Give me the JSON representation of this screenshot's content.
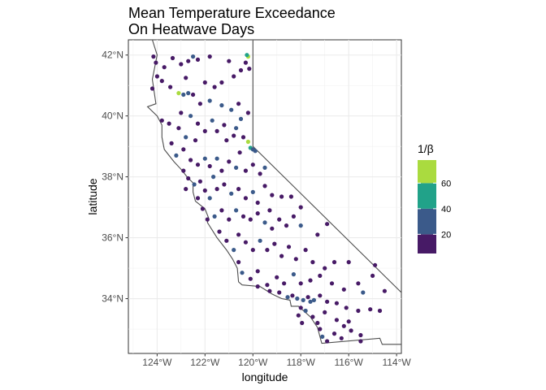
{
  "chart_data": {
    "type": "scatter",
    "title": [
      "Mean Temperature Exceedance",
      "On Heatwave Days"
    ],
    "xlabel": "longitude",
    "ylabel": "latitude",
    "xlim": [
      -125.2,
      -113.8
    ],
    "ylim": [
      32.2,
      42.5
    ],
    "x_ticks": [
      {
        "value": -124,
        "label": "124°W"
      },
      {
        "value": -122,
        "label": "122°W"
      },
      {
        "value": -120,
        "label": "120°W"
      },
      {
        "value": -118,
        "label": "118°W"
      },
      {
        "value": -116,
        "label": "116°W"
      },
      {
        "value": -114,
        "label": "114°W"
      }
    ],
    "y_ticks": [
      {
        "value": 34,
        "label": "34°N"
      },
      {
        "value": 36,
        "label": "36°N"
      },
      {
        "value": 38,
        "label": "38°N"
      },
      {
        "value": 40,
        "label": "40°N"
      },
      {
        "value": 42,
        "label": "42°N"
      }
    ],
    "grid": true,
    "legend": {
      "title": "1/β",
      "position": "right",
      "range": [
        5,
        78
      ],
      "ticks": [
        20,
        40,
        60
      ],
      "bins": [
        {
          "from": 0,
          "to": 20,
          "color": "#471a66"
        },
        {
          "from": 20,
          "to": 40,
          "color": "#3b5a8a"
        },
        {
          "from": 40,
          "to": 60,
          "color": "#21a289"
        },
        {
          "from": 60,
          "to": 80,
          "color": "#aadb3f"
        }
      ]
    },
    "outline": [
      [
        -124.2,
        42.5
      ],
      [
        -124.0,
        42.0
      ],
      [
        -124.2,
        41.2
      ],
      [
        -124.05,
        40.4
      ],
      [
        -124.4,
        40.3
      ],
      [
        -124.0,
        40.0
      ],
      [
        -123.8,
        39.7
      ],
      [
        -123.8,
        39.3
      ],
      [
        -123.7,
        38.9
      ],
      [
        -123.3,
        38.5
      ],
      [
        -123.0,
        38.25
      ],
      [
        -122.75,
        38.0
      ],
      [
        -122.5,
        37.8
      ],
      [
        -122.5,
        37.5
      ],
      [
        -122.4,
        37.2
      ],
      [
        -122.0,
        36.95
      ],
      [
        -121.85,
        36.65
      ],
      [
        -121.9,
        36.5
      ],
      [
        -121.5,
        36.0
      ],
      [
        -121.1,
        35.6
      ],
      [
        -120.85,
        35.3
      ],
      [
        -120.65,
        35.0
      ],
      [
        -120.6,
        34.55
      ],
      [
        -120.45,
        34.45
      ],
      [
        -119.7,
        34.4
      ],
      [
        -119.2,
        34.15
      ],
      [
        -118.8,
        34.0
      ],
      [
        -118.45,
        33.95
      ],
      [
        -118.4,
        33.75
      ],
      [
        -118.1,
        33.75
      ],
      [
        -117.6,
        33.4
      ],
      [
        -117.3,
        33.05
      ],
      [
        -117.15,
        32.6
      ],
      [
        -117.12,
        32.53
      ],
      [
        -114.7,
        32.7
      ],
      [
        -114.6,
        32.5
      ],
      [
        -113.8,
        32.5
      ]
    ],
    "outline_east": [
      [
        -120.0,
        42.5
      ],
      [
        -120.0,
        39.0
      ],
      [
        -113.8,
        34.2
      ]
    ],
    "points": [
      [
        -124.15,
        41.95,
        12
      ],
      [
        -124.05,
        41.75,
        12
      ],
      [
        -124.0,
        41.3,
        12
      ],
      [
        -123.7,
        41.6,
        12
      ],
      [
        -123.35,
        41.9,
        12
      ],
      [
        -123.0,
        41.7,
        12
      ],
      [
        -122.7,
        41.8,
        12
      ],
      [
        -122.5,
        41.95,
        30
      ],
      [
        -122.3,
        41.85,
        12
      ],
      [
        -121.8,
        41.95,
        12
      ],
      [
        -121.0,
        41.8,
        12
      ],
      [
        -120.5,
        41.5,
        12
      ],
      [
        -120.3,
        41.75,
        12
      ],
      [
        -120.2,
        41.95,
        70
      ],
      [
        -120.15,
        41.55,
        12
      ],
      [
        -120.25,
        42.0,
        52
      ],
      [
        -124.2,
        40.9,
        12
      ],
      [
        -123.8,
        41.15,
        12
      ],
      [
        -123.45,
        40.95,
        12
      ],
      [
        -123.1,
        40.75,
        72
      ],
      [
        -122.9,
        40.7,
        30
      ],
      [
        -122.7,
        40.75,
        30
      ],
      [
        -122.5,
        40.7,
        12
      ],
      [
        -122.8,
        41.25,
        12
      ],
      [
        -122.0,
        41.1,
        12
      ],
      [
        -121.6,
        40.95,
        12
      ],
      [
        -121.3,
        41.1,
        12
      ],
      [
        -120.8,
        41.3,
        12
      ],
      [
        -121.8,
        40.5,
        30
      ],
      [
        -122.2,
        40.4,
        12
      ],
      [
        -121.3,
        40.35,
        30
      ],
      [
        -120.9,
        40.2,
        30
      ],
      [
        -120.6,
        40.4,
        12
      ],
      [
        -120.2,
        40.1,
        12
      ],
      [
        -120.5,
        39.9,
        30
      ],
      [
        -123.8,
        39.85,
        12
      ],
      [
        -123.5,
        39.75,
        12
      ],
      [
        -123.1,
        39.6,
        12
      ],
      [
        -122.8,
        39.3,
        30
      ],
      [
        -122.3,
        39.75,
        12
      ],
      [
        -122.0,
        39.5,
        12
      ],
      [
        -121.7,
        39.85,
        30
      ],
      [
        -121.5,
        39.5,
        12
      ],
      [
        -121.1,
        39.2,
        12
      ],
      [
        -120.8,
        39.35,
        12
      ],
      [
        -120.4,
        39.3,
        12
      ],
      [
        -120.2,
        39.15,
        72
      ],
      [
        -120.1,
        38.95,
        48
      ],
      [
        -120.0,
        38.9,
        30
      ],
      [
        -119.9,
        38.85,
        30
      ],
      [
        -123.4,
        39.1,
        12
      ],
      [
        -123.2,
        38.7,
        30
      ],
      [
        -122.9,
        38.9,
        12
      ],
      [
        -122.6,
        38.55,
        12
      ],
      [
        -122.3,
        38.4,
        12
      ],
      [
        -122.0,
        38.6,
        30
      ],
      [
        -121.8,
        38.35,
        12
      ],
      [
        -121.5,
        38.6,
        30
      ],
      [
        -121.3,
        38.2,
        12
      ],
      [
        -121.0,
        38.5,
        12
      ],
      [
        -120.7,
        38.3,
        30
      ],
      [
        -120.3,
        38.2,
        12
      ],
      [
        -120.0,
        38.4,
        12
      ],
      [
        -119.7,
        38.1,
        12
      ],
      [
        -119.5,
        38.3,
        30
      ],
      [
        -122.9,
        38.2,
        12
      ],
      [
        -122.7,
        37.95,
        12
      ],
      [
        -122.45,
        37.75,
        30
      ],
      [
        -122.2,
        37.85,
        12
      ],
      [
        -122.0,
        37.55,
        12
      ],
      [
        -121.8,
        37.3,
        30
      ],
      [
        -121.5,
        37.6,
        12
      ],
      [
        -121.2,
        37.75,
        12
      ],
      [
        -120.9,
        37.45,
        30
      ],
      [
        -120.6,
        37.6,
        12
      ],
      [
        -120.3,
        37.3,
        12
      ],
      [
        -120.0,
        37.5,
        30
      ],
      [
        -119.8,
        37.15,
        12
      ],
      [
        -119.5,
        37.7,
        12
      ],
      [
        -119.2,
        37.4,
        12
      ],
      [
        -118.8,
        37.35,
        12
      ],
      [
        -118.4,
        37.35,
        12
      ],
      [
        -118.0,
        37.0,
        12
      ],
      [
        -122.3,
        37.3,
        12
      ],
      [
        -122.1,
        36.95,
        12
      ],
      [
        -121.9,
        36.6,
        12
      ],
      [
        -121.6,
        36.7,
        30
      ],
      [
        -121.3,
        36.9,
        12
      ],
      [
        -121.0,
        36.6,
        12
      ],
      [
        -120.7,
        36.9,
        30
      ],
      [
        -120.4,
        36.7,
        12
      ],
      [
        -120.1,
        36.6,
        12
      ],
      [
        -119.8,
        36.8,
        12
      ],
      [
        -119.5,
        36.5,
        30
      ],
      [
        -119.2,
        36.3,
        12
      ],
      [
        -118.9,
        36.6,
        12
      ],
      [
        -118.6,
        36.4,
        12
      ],
      [
        -118.3,
        36.7,
        12
      ],
      [
        -118.0,
        36.4,
        30
      ],
      [
        -116.9,
        36.45,
        12
      ],
      [
        -121.4,
        36.2,
        12
      ],
      [
        -121.1,
        35.9,
        12
      ],
      [
        -120.8,
        35.6,
        30
      ],
      [
        -120.6,
        36.1,
        12
      ],
      [
        -120.3,
        35.85,
        12
      ],
      [
        -120.0,
        35.6,
        12
      ],
      [
        -119.7,
        35.9,
        30
      ],
      [
        -119.4,
        35.6,
        12
      ],
      [
        -119.1,
        35.8,
        12
      ],
      [
        -118.8,
        35.4,
        12
      ],
      [
        -118.5,
        35.7,
        12
      ],
      [
        -118.2,
        35.3,
        12
      ],
      [
        -117.8,
        35.6,
        12
      ],
      [
        -117.5,
        35.2,
        12
      ],
      [
        -117.0,
        35.0,
        12
      ],
      [
        -120.6,
        35.2,
        12
      ],
      [
        -120.45,
        34.85,
        30
      ],
      [
        -120.1,
        34.65,
        12
      ],
      [
        -119.8,
        34.9,
        12
      ],
      [
        -119.4,
        34.45,
        12
      ],
      [
        -119.0,
        34.7,
        12
      ],
      [
        -118.7,
        34.5,
        12
      ],
      [
        -118.3,
        34.8,
        30
      ],
      [
        -118.0,
        34.5,
        12
      ],
      [
        -117.6,
        34.6,
        12
      ],
      [
        -117.2,
        34.75,
        12
      ],
      [
        -116.7,
        34.5,
        12
      ],
      [
        -116.2,
        34.3,
        12
      ],
      [
        -115.6,
        34.5,
        12
      ],
      [
        -115.0,
        34.75,
        12
      ],
      [
        -114.5,
        34.25,
        12
      ],
      [
        -115.4,
        34.2,
        30
      ],
      [
        -116.0,
        35.2,
        12
      ],
      [
        -116.6,
        35.2,
        12
      ],
      [
        -114.9,
        35.1,
        12
      ],
      [
        -119.8,
        34.4,
        12
      ],
      [
        -119.3,
        34.25,
        12
      ],
      [
        -118.9,
        34.2,
        12
      ],
      [
        -118.55,
        34.05,
        30
      ],
      [
        -118.35,
        34.1,
        12
      ],
      [
        -118.15,
        34.0,
        30
      ],
      [
        -117.9,
        33.95,
        30
      ],
      [
        -117.7,
        34.05,
        12
      ],
      [
        -117.45,
        33.95,
        30
      ],
      [
        -117.2,
        34.1,
        12
      ],
      [
        -116.9,
        33.9,
        12
      ],
      [
        -116.5,
        33.85,
        12
      ],
      [
        -116.1,
        33.7,
        12
      ],
      [
        -115.6,
        33.6,
        12
      ],
      [
        -115.1,
        33.65,
        12
      ],
      [
        -114.7,
        33.6,
        12
      ],
      [
        -118.0,
        33.7,
        12
      ],
      [
        -117.8,
        33.6,
        30
      ],
      [
        -117.5,
        33.4,
        12
      ],
      [
        -117.3,
        33.2,
        12
      ],
      [
        -117.2,
        33.0,
        12
      ],
      [
        -117.1,
        32.75,
        30
      ],
      [
        -116.9,
        32.6,
        12
      ],
      [
        -116.6,
        32.85,
        12
      ],
      [
        -116.3,
        32.7,
        12
      ],
      [
        -115.9,
        32.95,
        12
      ],
      [
        -115.5,
        32.8,
        12
      ],
      [
        -115.5,
        32.6,
        12
      ],
      [
        -116.0,
        33.25,
        12
      ],
      [
        -116.5,
        33.3,
        12
      ],
      [
        -118.1,
        33.45,
        12
      ],
      [
        -117.95,
        33.2,
        12
      ],
      [
        -116.2,
        33.1,
        12
      ],
      [
        -117.6,
        33.9,
        30
      ],
      [
        -117.0,
        33.55,
        12
      ],
      [
        -123.0,
        40.1,
        12
      ],
      [
        -122.6,
        40.0,
        30
      ],
      [
        -122.4,
        39.2,
        12
      ],
      [
        -121.2,
        39.7,
        12
      ],
      [
        -120.7,
        39.6,
        30
      ],
      [
        -122.8,
        37.6,
        12
      ],
      [
        -121.65,
        38.0,
        30
      ],
      [
        -120.55,
        38.8,
        12
      ],
      [
        -119.3,
        36.9,
        12
      ],
      [
        -117.3,
        36.1,
        12
      ]
    ]
  }
}
